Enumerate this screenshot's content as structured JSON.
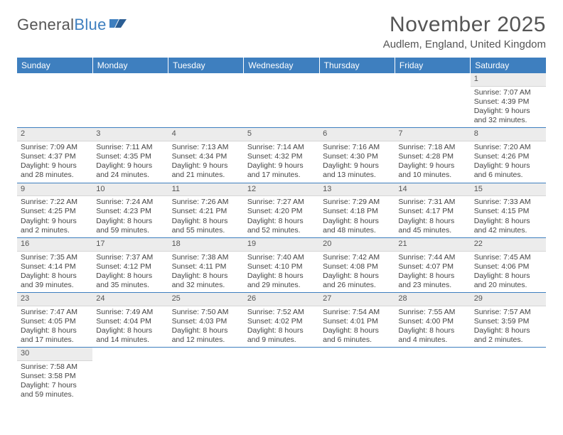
{
  "logo": {
    "word1": "General",
    "word2": "Blue"
  },
  "title": "November 2025",
  "location": "Audlem, England, United Kingdom",
  "colors": {
    "header_bg": "#3e7fbf",
    "header_text": "#ffffff",
    "daynum_bg": "#ececec",
    "border": "#3e7fbf",
    "body_text": "#444444",
    "title_text": "#555555"
  },
  "columns": [
    "Sunday",
    "Monday",
    "Tuesday",
    "Wednesday",
    "Thursday",
    "Friday",
    "Saturday"
  ],
  "weeks": [
    [
      null,
      null,
      null,
      null,
      null,
      null,
      {
        "n": "1",
        "sunrise": "7:07 AM",
        "sunset": "4:39 PM",
        "daylight": "9 hours and 32 minutes."
      }
    ],
    [
      {
        "n": "2",
        "sunrise": "7:09 AM",
        "sunset": "4:37 PM",
        "daylight": "9 hours and 28 minutes."
      },
      {
        "n": "3",
        "sunrise": "7:11 AM",
        "sunset": "4:35 PM",
        "daylight": "9 hours and 24 minutes."
      },
      {
        "n": "4",
        "sunrise": "7:13 AM",
        "sunset": "4:34 PM",
        "daylight": "9 hours and 21 minutes."
      },
      {
        "n": "5",
        "sunrise": "7:14 AM",
        "sunset": "4:32 PM",
        "daylight": "9 hours and 17 minutes."
      },
      {
        "n": "6",
        "sunrise": "7:16 AM",
        "sunset": "4:30 PM",
        "daylight": "9 hours and 13 minutes."
      },
      {
        "n": "7",
        "sunrise": "7:18 AM",
        "sunset": "4:28 PM",
        "daylight": "9 hours and 10 minutes."
      },
      {
        "n": "8",
        "sunrise": "7:20 AM",
        "sunset": "4:26 PM",
        "daylight": "9 hours and 6 minutes."
      }
    ],
    [
      {
        "n": "9",
        "sunrise": "7:22 AM",
        "sunset": "4:25 PM",
        "daylight": "9 hours and 2 minutes."
      },
      {
        "n": "10",
        "sunrise": "7:24 AM",
        "sunset": "4:23 PM",
        "daylight": "8 hours and 59 minutes."
      },
      {
        "n": "11",
        "sunrise": "7:26 AM",
        "sunset": "4:21 PM",
        "daylight": "8 hours and 55 minutes."
      },
      {
        "n": "12",
        "sunrise": "7:27 AM",
        "sunset": "4:20 PM",
        "daylight": "8 hours and 52 minutes."
      },
      {
        "n": "13",
        "sunrise": "7:29 AM",
        "sunset": "4:18 PM",
        "daylight": "8 hours and 48 minutes."
      },
      {
        "n": "14",
        "sunrise": "7:31 AM",
        "sunset": "4:17 PM",
        "daylight": "8 hours and 45 minutes."
      },
      {
        "n": "15",
        "sunrise": "7:33 AM",
        "sunset": "4:15 PM",
        "daylight": "8 hours and 42 minutes."
      }
    ],
    [
      {
        "n": "16",
        "sunrise": "7:35 AM",
        "sunset": "4:14 PM",
        "daylight": "8 hours and 39 minutes."
      },
      {
        "n": "17",
        "sunrise": "7:37 AM",
        "sunset": "4:12 PM",
        "daylight": "8 hours and 35 minutes."
      },
      {
        "n": "18",
        "sunrise": "7:38 AM",
        "sunset": "4:11 PM",
        "daylight": "8 hours and 32 minutes."
      },
      {
        "n": "19",
        "sunrise": "7:40 AM",
        "sunset": "4:10 PM",
        "daylight": "8 hours and 29 minutes."
      },
      {
        "n": "20",
        "sunrise": "7:42 AM",
        "sunset": "4:08 PM",
        "daylight": "8 hours and 26 minutes."
      },
      {
        "n": "21",
        "sunrise": "7:44 AM",
        "sunset": "4:07 PM",
        "daylight": "8 hours and 23 minutes."
      },
      {
        "n": "22",
        "sunrise": "7:45 AM",
        "sunset": "4:06 PM",
        "daylight": "8 hours and 20 minutes."
      }
    ],
    [
      {
        "n": "23",
        "sunrise": "7:47 AM",
        "sunset": "4:05 PM",
        "daylight": "8 hours and 17 minutes."
      },
      {
        "n": "24",
        "sunrise": "7:49 AM",
        "sunset": "4:04 PM",
        "daylight": "8 hours and 14 minutes."
      },
      {
        "n": "25",
        "sunrise": "7:50 AM",
        "sunset": "4:03 PM",
        "daylight": "8 hours and 12 minutes."
      },
      {
        "n": "26",
        "sunrise": "7:52 AM",
        "sunset": "4:02 PM",
        "daylight": "8 hours and 9 minutes."
      },
      {
        "n": "27",
        "sunrise": "7:54 AM",
        "sunset": "4:01 PM",
        "daylight": "8 hours and 6 minutes."
      },
      {
        "n": "28",
        "sunrise": "7:55 AM",
        "sunset": "4:00 PM",
        "daylight": "8 hours and 4 minutes."
      },
      {
        "n": "29",
        "sunrise": "7:57 AM",
        "sunset": "3:59 PM",
        "daylight": "8 hours and 2 minutes."
      }
    ],
    [
      {
        "n": "30",
        "sunrise": "7:58 AM",
        "sunset": "3:58 PM",
        "daylight": "7 hours and 59 minutes."
      },
      null,
      null,
      null,
      null,
      null,
      null
    ]
  ],
  "labels": {
    "sunrise": "Sunrise:",
    "sunset": "Sunset:",
    "daylight": "Daylight:"
  }
}
